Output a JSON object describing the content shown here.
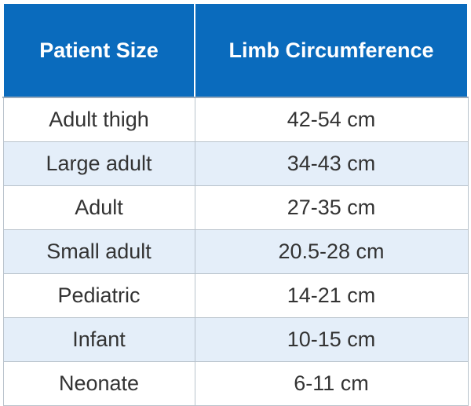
{
  "table": {
    "header": [
      "Patient Size",
      "Limb Circumference"
    ],
    "rows": [
      [
        "Adult thigh",
        "42-54 cm"
      ],
      [
        "Large adult",
        "34-43 cm"
      ],
      [
        "Adult",
        "27-35 cm"
      ],
      [
        "Small adult",
        "20.5-28 cm"
      ],
      [
        "Pediatric",
        "14-21 cm"
      ],
      [
        "Infant",
        "10-15 cm"
      ],
      [
        "Neonate",
        "6-11 cm"
      ]
    ]
  }
}
